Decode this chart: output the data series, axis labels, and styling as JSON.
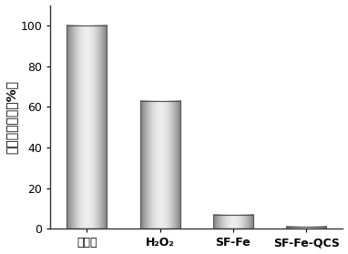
{
  "categories": [
    "对照组",
    "H₂O₂",
    "SF-Fe",
    "SF-Fe-QCS"
  ],
  "values": [
    100,
    63,
    7,
    1
  ],
  "bar_color_dark": "#888888",
  "bar_color_mid": "#d0d0d0",
  "bar_color_light": "#f0f0f0",
  "bar_edge_color": "#555555",
  "ylabel": "相对细菌数量（%）",
  "ylim": [
    0,
    110
  ],
  "yticks": [
    0,
    20,
    40,
    60,
    80,
    100
  ],
  "background_color": "#ffffff",
  "bar_width": 0.55,
  "ylabel_fontsize": 10,
  "tick_fontsize": 9,
  "xtick_fontsize": 9,
  "edge_linewidth": 0.8,
  "n_gradient_steps": 100
}
